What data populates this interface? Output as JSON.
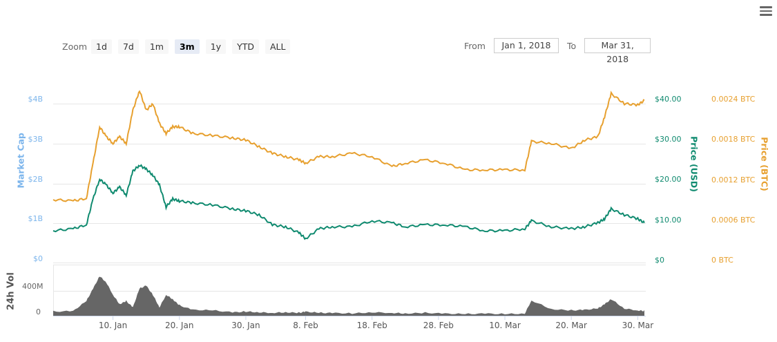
{
  "toolbar": {
    "zoom_label": "Zoom",
    "zoom_options": [
      "1d",
      "7d",
      "1m",
      "3m",
      "1y",
      "YTD",
      "ALL"
    ],
    "active_zoom": "3m",
    "from_label": "From",
    "from_value": "Jan 1, 2018",
    "to_label": "To",
    "to_value": "Mar 31, 2018",
    "menu_icon": "hamburger-menu-icon"
  },
  "colors": {
    "market_cap": "#7cb5ec",
    "price_usd": "#0f8a6f",
    "price_btc": "#e7a02f",
    "volume": "#666666",
    "grid": "#e6e6e6"
  },
  "chart_data": {
    "type": "line",
    "title": "",
    "x_range": [
      "Jan 1, 2018",
      "Mar 31, 2018"
    ],
    "xticks": [
      "10. Jan",
      "20. Jan",
      "30. Jan",
      "8. Feb",
      "18. Feb",
      "28. Feb",
      "10. Mar",
      "20. Mar",
      "30. Mar"
    ],
    "axes": {
      "market_cap": {
        "label": "Market Cap",
        "ticks": [
          "$0",
          "$1B",
          "$2B",
          "$3B",
          "$4B"
        ],
        "range": [
          0,
          4000000000
        ]
      },
      "price_usd": {
        "label": "Price (USD)",
        "ticks": [
          "$0",
          "$10.00",
          "$20.00",
          "$30.00",
          "$40.00"
        ],
        "range": [
          0,
          40
        ]
      },
      "price_btc": {
        "label": "Price (BTC)",
        "ticks": [
          "0 BTC",
          "0.0006 BTC",
          "0.0012 BTC",
          "0.0018 BTC",
          "0.0024 BTC"
        ],
        "range": [
          0,
          0.0024
        ]
      },
      "volume": {
        "label": "24h Vol",
        "ticks": [
          "0",
          "400M"
        ]
      }
    },
    "grid": true,
    "legend": "none",
    "x": [
      "Jan 1",
      "Jan 4",
      "Jan 6",
      "Jan 7",
      "Jan 8",
      "Jan 9",
      "Jan 10",
      "Jan 11",
      "Jan 12",
      "Jan 13",
      "Jan 14",
      "Jan 15",
      "Jan 16",
      "Jan 17",
      "Jan 18",
      "Jan 19",
      "Jan 20",
      "Jan 22",
      "Jan 25",
      "Jan 28",
      "Jan 30",
      "Feb 1",
      "Feb 3",
      "Feb 5",
      "Feb 7",
      "Feb 8",
      "Feb 10",
      "Feb 12",
      "Feb 15",
      "Feb 18",
      "Feb 21",
      "Feb 23",
      "Feb 26",
      "Mar 1",
      "Mar 4",
      "Mar 7",
      "Mar 10",
      "Mar 13",
      "Mar 14",
      "Mar 17",
      "Mar 20",
      "Mar 22",
      "Mar 24",
      "Mar 25",
      "Mar 26",
      "Mar 28",
      "Mar 30",
      "Mar 31"
    ],
    "series": [
      {
        "name": "Price (USD)",
        "axis": "price_usd",
        "values": [
          8.0,
          8.5,
          9.5,
          16.0,
          21.0,
          19.5,
          17.5,
          19.0,
          17.0,
          23.0,
          24.5,
          23.5,
          22.0,
          19.5,
          14.0,
          16.0,
          15.5,
          15.0,
          14.5,
          13.5,
          13.0,
          12.0,
          9.5,
          9.0,
          7.5,
          6.0,
          8.5,
          9.0,
          9.0,
          10.5,
          10.0,
          9.0,
          9.5,
          9.5,
          9.0,
          8.0,
          8.0,
          8.5,
          10.5,
          9.0,
          8.5,
          9.0,
          10.0,
          11.0,
          13.5,
          12.0,
          11.0,
          10.0
        ]
      },
      {
        "name": "Price (BTC)",
        "axis": "price_btc",
        "values": [
          0.00095,
          0.00093,
          0.00097,
          0.0015,
          0.00205,
          0.0019,
          0.0018,
          0.0019,
          0.0018,
          0.0023,
          0.0026,
          0.0023,
          0.0024,
          0.0021,
          0.00195,
          0.00205,
          0.00205,
          0.00195,
          0.00192,
          0.00188,
          0.00185,
          0.00175,
          0.00165,
          0.0016,
          0.00155,
          0.0015,
          0.0016,
          0.0016,
          0.00165,
          0.0016,
          0.00145,
          0.0015,
          0.00155,
          0.0015,
          0.0014,
          0.0014,
          0.0014,
          0.0014,
          0.00183,
          0.0018,
          0.00172,
          0.00185,
          0.0019,
          0.0022,
          0.00255,
          0.0024,
          0.00238,
          0.00245
        ]
      },
      {
        "name": "24h Vol",
        "axis": "volume",
        "values": [
          80,
          90,
          250,
          450,
          650,
          550,
          350,
          200,
          250,
          150,
          450,
          500,
          350,
          150,
          350,
          280,
          180,
          110,
          100,
          70,
          80,
          70,
          60,
          70,
          60,
          80,
          60,
          60,
          50,
          70,
          60,
          50,
          60,
          50,
          40,
          50,
          40,
          50,
          260,
          120,
          100,
          110,
          130,
          200,
          280,
          130,
          100,
          90
        ]
      }
    ]
  }
}
